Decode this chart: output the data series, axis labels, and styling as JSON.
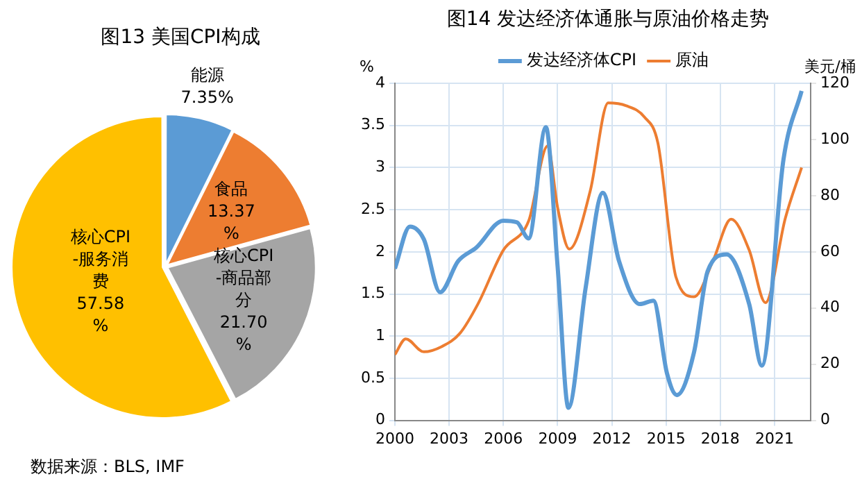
{
  "chart_data": [
    {
      "type": "pie",
      "title": "图13 美国CPI构成",
      "categories": [
        "能源",
        "食品",
        "核心CPI-商品部分",
        "核心CPI-服务消费"
      ],
      "values": [
        7.35,
        13.37,
        21.7,
        57.58
      ],
      "colors": [
        "#5b9bd5",
        "#ed7d31",
        "#a5a5a5",
        "#ffc000"
      ],
      "value_labels": [
        "7.35%",
        "13.37%",
        "21.70%",
        "57.58%"
      ],
      "legend": false,
      "annotations": [
        "数据来源：BLS, IMF"
      ]
    },
    {
      "type": "line",
      "title": "图14 发达经济体通胀与原油价格走势",
      "ylabel": "%",
      "y2label": "美元/桶",
      "legend": "top",
      "grid": true,
      "marker": "none",
      "line_style": "solid",
      "xlim": [
        2000,
        2023
      ],
      "xticks": [
        2000,
        2003,
        2006,
        2009,
        2012,
        2015,
        2018,
        2021
      ],
      "ylim": [
        0,
        4
      ],
      "yticks": [
        0,
        0.5,
        1,
        1.5,
        2,
        2.5,
        3,
        3.5,
        4
      ],
      "y2lim": [
        0,
        120
      ],
      "y2ticks": [
        0,
        20,
        40,
        60,
        80,
        100,
        120
      ],
      "series": [
        {
          "name": "发达经济体CPI",
          "color": "#5b9bd5",
          "x": [
            2000,
            2000.83,
            2001.6,
            2002.5,
            2003.5,
            2004.5,
            2006,
            2006.75,
            2007.4,
            2008.35,
            2009,
            2009.6,
            2010.55,
            2011.5,
            2012.4,
            2013.55,
            2014.3,
            2015.05,
            2015.6,
            2016.55,
            2017.3,
            2018.35,
            2019.6,
            2020.3,
            2021.5,
            2022.5
          ],
          "values": [
            1.8,
            2.3,
            2.15,
            1.52,
            1.89,
            2.05,
            2.37,
            2.35,
            2.16,
            3.48,
            1.83,
            0.15,
            1.57,
            2.7,
            1.89,
            1.38,
            1.42,
            0.56,
            0.3,
            0.81,
            1.77,
            1.97,
            1.38,
            0.65,
            3.1,
            3.91
          ]
        },
        {
          "name": "原油",
          "color": "#ed7d31",
          "axis": "y2",
          "x": [
            2000,
            2000.6,
            2001.6,
            2002.6,
            2003.6,
            2004.6,
            2006,
            2007.4,
            2008.45,
            2009,
            2009.65,
            2010.8,
            2011.8,
            2012.8,
            2013.8,
            2014.55,
            2015.55,
            2016.55,
            2017.6,
            2018.6,
            2019.6,
            2020.5,
            2021.6,
            2022.5
          ],
          "values": [
            23.4,
            29,
            24.4,
            26.3,
            31,
            41.5,
            60.6,
            71,
            97.7,
            75.8,
            61,
            81.5,
            113,
            112,
            108,
            98.7,
            51,
            44,
            56.8,
            71.6,
            60.6,
            41.9,
            72,
            90
          ]
        }
      ]
    }
  ]
}
